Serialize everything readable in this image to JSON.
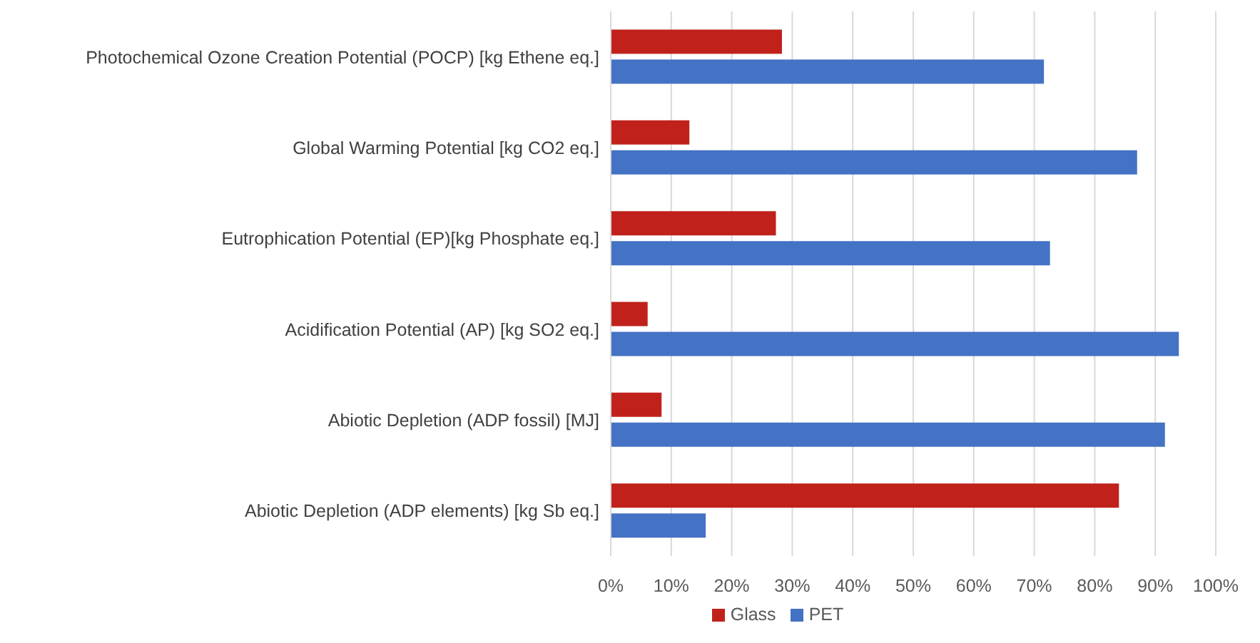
{
  "chart_data": {
    "type": "bar",
    "orientation": "horizontal",
    "categories": [
      "Photochemical Ozone Creation Potential (POCP) [kg Ethene eq.]",
      "Global Warming Potential [kg CO2 eq.]",
      "Eutrophication Potential (EP)[kg Phosphate eq.]",
      "Acidification Potential (AP) [kg SO2 eq.]",
      "Abiotic Depletion (ADP fossil) [MJ]",
      "Abiotic Depletion (ADP elements) [kg Sb eq.]"
    ],
    "series": [
      {
        "name": "Glass",
        "color": "#c0221b",
        "values": [
          28.3,
          13,
          27.3,
          6.1,
          8.4,
          84
        ]
      },
      {
        "name": "PET",
        "color": "#4472c4",
        "values": [
          71.6,
          87,
          72.6,
          93.9,
          91.6,
          15.7
        ]
      }
    ],
    "xlim": [
      0,
      100
    ],
    "xticks": [
      {
        "value": 0,
        "label": "0%"
      },
      {
        "value": 10,
        "label": "10%"
      },
      {
        "value": 20,
        "label": "20%"
      },
      {
        "value": 30,
        "label": "30%"
      },
      {
        "value": 40,
        "label": "40%"
      },
      {
        "value": 50,
        "label": "50%"
      },
      {
        "value": 60,
        "label": "60%"
      },
      {
        "value": 70,
        "label": "70%"
      },
      {
        "value": 80,
        "label": "80%"
      },
      {
        "value": 90,
        "label": "90%"
      },
      {
        "value": 100,
        "label": "100%"
      }
    ],
    "grid": "x",
    "legend": "bottom"
  }
}
